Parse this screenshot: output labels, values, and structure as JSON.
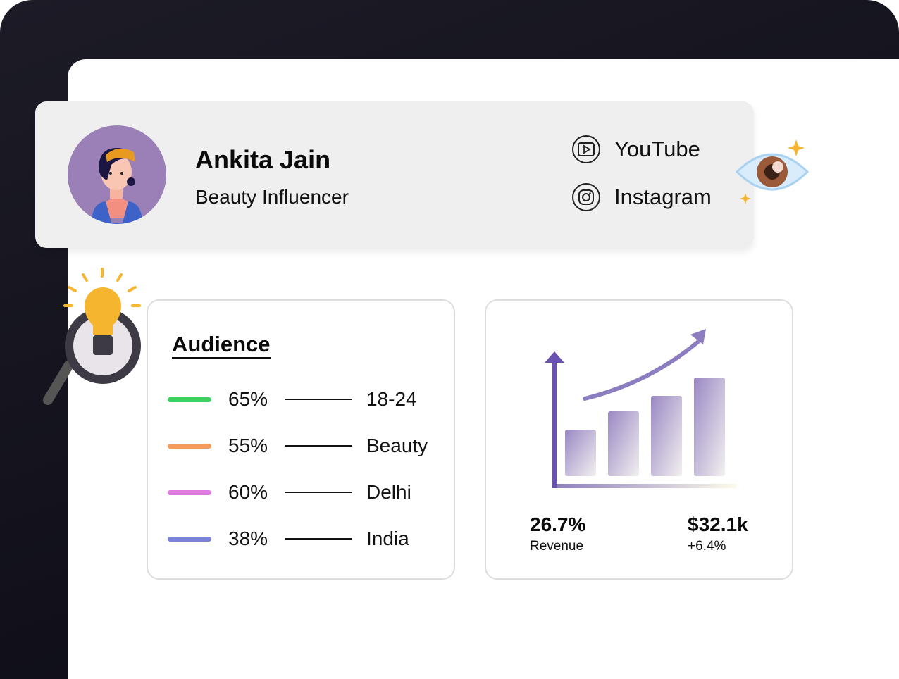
{
  "profile": {
    "name": "Ankita Jain",
    "role": "Beauty Influencer",
    "socials": [
      {
        "label": "YouTube",
        "icon": "youtube-icon"
      },
      {
        "label": "Instagram",
        "icon": "instagram-icon"
      }
    ]
  },
  "audience": {
    "title": "Audience",
    "rows": [
      {
        "percent": "65%",
        "label": "18-24",
        "color": "#3ecf62"
      },
      {
        "percent": "55%",
        "label": "Beauty",
        "color": "#f49a5c"
      },
      {
        "percent": "60%",
        "label": "Delhi",
        "color": "#e07ae0"
      },
      {
        "percent": "38%",
        "label": "India",
        "color": "#7b82d8"
      }
    ]
  },
  "stats": {
    "left": {
      "value": "26.7%",
      "label": "Revenue"
    },
    "right": {
      "value": "$32.1k",
      "label": "+6.4%"
    }
  },
  "colors": {
    "accent": "#6a52b0",
    "avatar_bg": "#9a80b6"
  }
}
